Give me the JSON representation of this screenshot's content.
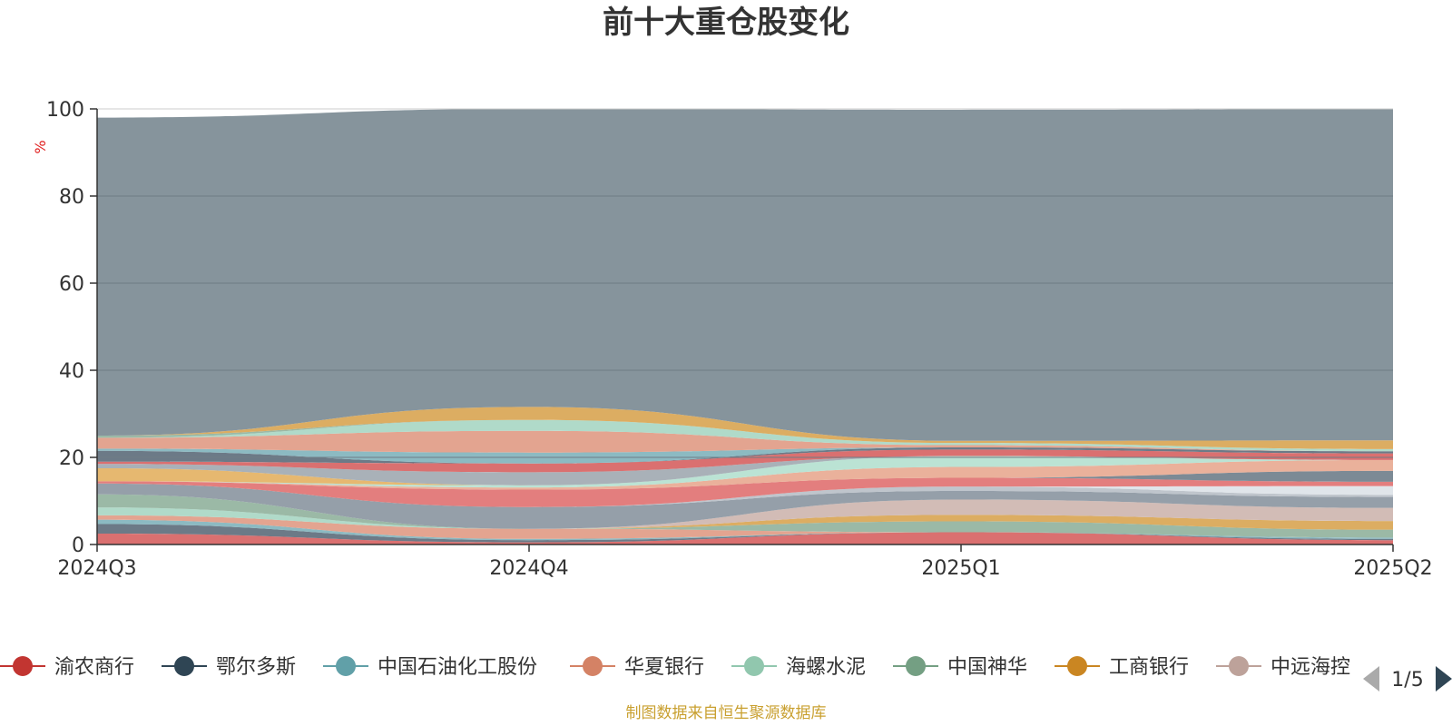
{
  "chart_data": {
    "type": "area",
    "title": "前十大重仓股变化",
    "ylabel": "%",
    "ylim": [
      0,
      100
    ],
    "y_ticks": [
      "0",
      "20",
      "40",
      "60",
      "80",
      "100"
    ],
    "categories": [
      "2024Q3",
      "2024Q4",
      "2025Q1",
      "2025Q2"
    ],
    "grid": true,
    "legend_position": "bottom",
    "legend_page": "1/5",
    "legend_items": [
      {
        "name": "渝农商行",
        "color": "#c23531"
      },
      {
        "name": "鄂尔多斯",
        "color": "#2f4554"
      },
      {
        "name": "中国石油化工股份",
        "color": "#61a0a8"
      },
      {
        "name": "华夏银行",
        "color": "#d48265"
      },
      {
        "name": "海螺水泥",
        "color": "#91c7ae"
      },
      {
        "name": "中国神华",
        "color": "#749f83"
      },
      {
        "name": "工商银行",
        "color": "#ca8622"
      },
      {
        "name": "中远海控",
        "color": "#bda29a"
      }
    ],
    "stack_colors": [
      "#d66060",
      "#5c6b7a",
      "#7fb3bb",
      "#e09a84",
      "#a7d6c3",
      "#90b19c",
      "#d8a451",
      "#cdb5ae",
      "#8a95a0",
      "#b8bfc6",
      "#dde2e8",
      "#e07070",
      "#6e7d8a",
      "#9cc6c9",
      "#e8a890",
      "#b4e0cf",
      "#e3b060",
      "#a0a8b0"
    ],
    "series": [
      {
        "values": [
          2.5,
          0.5,
          2.8,
          1.0
        ]
      },
      {
        "values": [
          2.2,
          0.5,
          0.0,
          0.3
        ]
      },
      {
        "values": [
          1.0,
          0.3,
          0.0,
          0.3
        ]
      },
      {
        "values": [
          1.0,
          2.3,
          0.0,
          0.0
        ]
      },
      {
        "values": [
          1.8,
          0.0,
          0.0,
          0.0
        ]
      },
      {
        "values": [
          3.0,
          0.0,
          2.5,
          1.8
        ]
      },
      {
        "values": [
          0.0,
          0.0,
          1.5,
          2.0
        ]
      },
      {
        "values": [
          0.0,
          0.0,
          3.5,
          3.0
        ]
      },
      {
        "values": [
          2.5,
          5.0,
          2.0,
          2.5
        ]
      },
      {
        "values": [
          0.0,
          0.0,
          1.0,
          0.5
        ]
      },
      {
        "values": [
          0.0,
          0.0,
          0.0,
          2.0
        ]
      },
      {
        "values": [
          0.5,
          4.0,
          2.0,
          1.0
        ]
      },
      {
        "values": [
          0.0,
          0.0,
          0.0,
          2.5
        ]
      },
      {
        "values": [
          0.0,
          0.0,
          0.0,
          0.0
        ]
      },
      {
        "values": [
          0.0,
          0.5,
          2.5,
          2.5
        ]
      },
      {
        "values": [
          0.0,
          0.5,
          2.5,
          0.0
        ]
      },
      {
        "values": [
          3.0,
          0.0,
          0.0,
          0.0
        ]
      },
      {
        "values": [
          1.0,
          3.0,
          0.0,
          0.0
        ]
      },
      {
        "values": [
          0.5,
          2.0,
          1.5,
          1.5
        ]
      },
      {
        "values": [
          2.5,
          0.0,
          0.5,
          0.5
        ]
      },
      {
        "values": [
          0.5,
          2.5,
          0.0,
          0.0
        ]
      },
      {
        "values": [
          2.5,
          5.0,
          0.5,
          0.0
        ]
      },
      {
        "values": [
          0.0,
          2.5,
          0.5,
          0.5
        ]
      },
      {
        "values": [
          0.5,
          0.0,
          0.0,
          0.0
        ]
      },
      {
        "values": [
          0.0,
          3.0,
          0.5,
          2.0
        ]
      },
      {
        "values": [
          73.0,
          69.0,
          76.0,
          76.0
        ]
      }
    ]
  },
  "footer": {
    "source": "制图数据来自恒生聚源数据库"
  }
}
